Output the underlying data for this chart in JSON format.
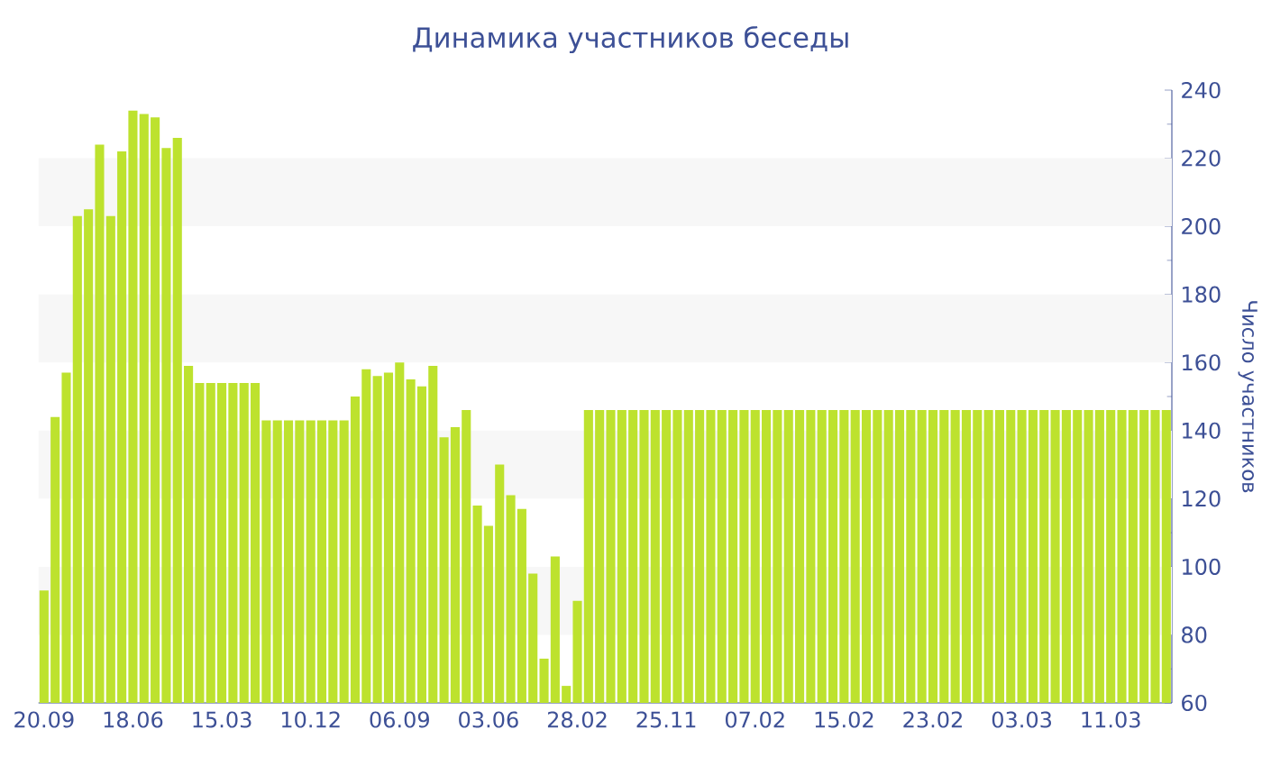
{
  "chart_data": {
    "type": "bar",
    "title": "Динамика участников беседы",
    "ylabel": "Число участников",
    "categories": [
      "20.09",
      null,
      null,
      null,
      null,
      null,
      null,
      null,
      "18.06",
      null,
      null,
      null,
      null,
      null,
      null,
      null,
      "15.03",
      null,
      null,
      null,
      null,
      null,
      null,
      null,
      "10.12",
      null,
      null,
      null,
      null,
      null,
      null,
      null,
      "06.09",
      null,
      null,
      null,
      null,
      null,
      null,
      null,
      "03.06",
      null,
      null,
      null,
      null,
      null,
      null,
      null,
      "28.02",
      null,
      null,
      null,
      null,
      null,
      null,
      null,
      "25.11",
      null,
      null,
      null,
      null,
      null,
      null,
      null,
      "07.02",
      null,
      null,
      null,
      null,
      null,
      null,
      null,
      "15.02",
      null,
      null,
      null,
      null,
      null,
      null,
      null,
      "23.02",
      null,
      null,
      null,
      null,
      null,
      null,
      null,
      "03.03",
      null,
      null,
      null,
      null,
      null,
      null,
      null,
      "11.03",
      null,
      null,
      null,
      null,
      null
    ],
    "values": [
      93,
      144,
      157,
      203,
      205,
      224,
      203,
      222,
      234,
      233,
      232,
      223,
      226,
      159,
      154,
      154,
      154,
      154,
      154,
      154,
      143,
      143,
      143,
      143,
      143,
      143,
      143,
      143,
      150,
      158,
      156,
      157,
      160,
      155,
      153,
      159,
      138,
      141,
      146,
      118,
      112,
      130,
      121,
      117,
      98,
      73,
      103,
      65,
      90,
      146,
      146,
      146,
      146,
      146,
      146,
      146,
      146,
      146,
      146,
      146,
      146,
      146,
      146,
      146,
      146,
      146,
      146,
      146,
      146,
      146,
      146,
      146,
      146,
      146,
      146,
      146,
      146,
      146,
      146,
      146,
      146,
      146,
      146,
      146,
      146,
      146,
      146,
      146,
      146,
      146,
      146,
      146,
      146,
      146,
      146,
      146,
      146,
      146,
      146,
      146,
      146,
      146
    ],
    "color": "#bde22e",
    "ylim": [
      60,
      240
    ],
    "yticks": [
      60,
      80,
      100,
      120,
      140,
      160,
      180,
      200,
      220,
      240
    ],
    "bands": [
      {
        "axis": "y",
        "from": 80,
        "to": 100,
        "color": "#f7f7f7"
      },
      {
        "axis": "y",
        "from": 120,
        "to": 140,
        "color": "#f7f7f7"
      },
      {
        "axis": "y",
        "from": 160,
        "to": 180,
        "color": "#f7f7f7"
      },
      {
        "axis": "y",
        "from": 200,
        "to": 220,
        "color": "#f7f7f7"
      }
    ]
  }
}
